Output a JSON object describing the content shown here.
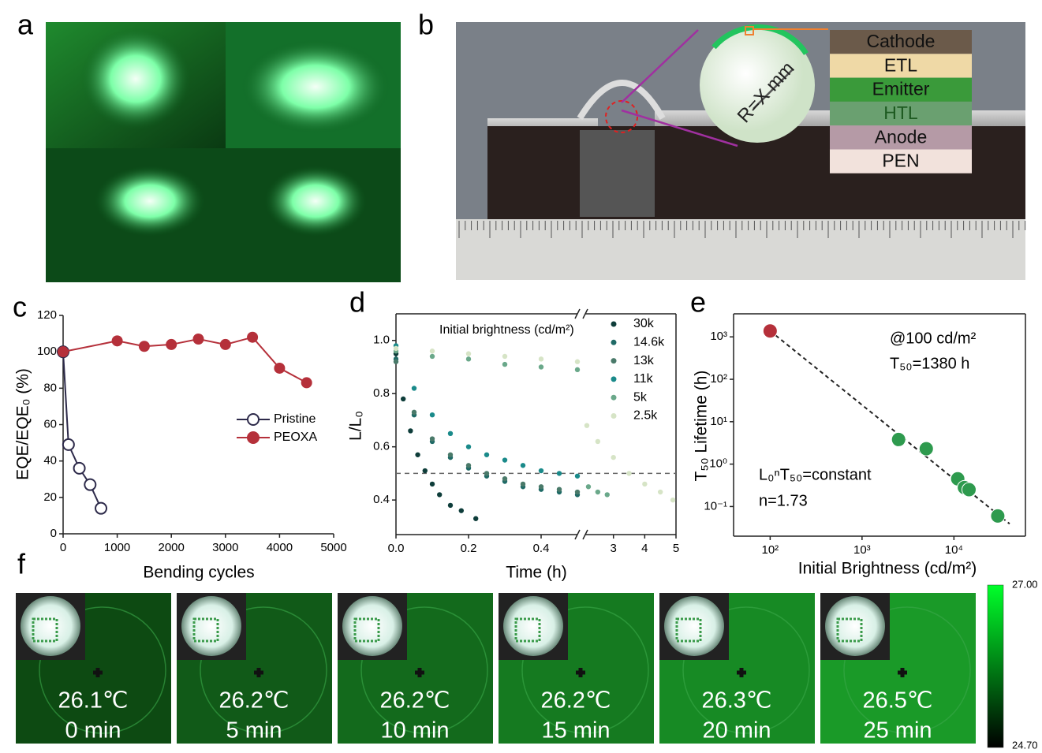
{
  "panel_labels": [
    "a",
    "b",
    "c",
    "d",
    "e",
    "f"
  ],
  "panel_b": {
    "layers": [
      "Cathode",
      "ETL",
      "Emitter",
      "HTL",
      "Anode",
      "PEN"
    ],
    "radius_label": "R=X mm"
  },
  "chart_data": [
    {
      "type": "line",
      "xlabel": "Bending cycles",
      "ylabel": "EQE/EQE₀ (%)",
      "xlim": [
        0,
        5000
      ],
      "xticks": [
        0,
        1000,
        2000,
        3000,
        4000,
        5000
      ],
      "ylim": [
        0,
        120
      ],
      "yticks": [
        0,
        20,
        40,
        60,
        80,
        100,
        120
      ],
      "legend_position": "center right",
      "series": [
        {
          "name": "Pristine",
          "color": "#2d2a4a",
          "marker": "open",
          "x": [
            0,
            100,
            300,
            500,
            700
          ],
          "values": [
            100,
            49,
            36,
            27,
            14
          ]
        },
        {
          "name": "PEOXA",
          "color": "#b5303a",
          "marker": "filled",
          "x": [
            0,
            1000,
            1500,
            2000,
            2500,
            3000,
            3500,
            4000,
            4500
          ],
          "values": [
            100,
            106,
            103,
            104,
            107,
            104,
            108,
            91,
            83
          ]
        }
      ]
    },
    {
      "type": "scatter",
      "xlabel": "Time (h)",
      "ylabel": "L/L₀",
      "xlim": [
        0,
        0.5
      ],
      "xticks": [
        {
          "value": 0,
          "label": "0.0"
        },
        0.2,
        0.4
      ],
      "x2lim": [
        2.1,
        5
      ],
      "x2ticks": [
        3,
        4,
        5
      ],
      "ylim": [
        0.27,
        1.1
      ],
      "yticks": [
        0.4,
        0.6,
        0.8,
        {
          "value": 1,
          "label": "1.0"
        }
      ],
      "reference_line": 0.5,
      "legend_title": "Initial brightness (cd/m²)",
      "legend_position": "upper right",
      "series": [
        {
          "name": "30k",
          "color": "#0e3d3a",
          "x": [
            0,
            0.02,
            0.04,
            0.06,
            0.08,
            0.1,
            0.12,
            0.15,
            0.18,
            0.22
          ],
          "values": [
            0.95,
            0.78,
            0.66,
            0.57,
            0.51,
            0.46,
            0.42,
            0.38,
            0.36,
            0.33
          ]
        },
        {
          "name": "14.6k",
          "color": "#1f6a66",
          "x": [
            0,
            0.05,
            0.1,
            0.15,
            0.2,
            0.25,
            0.3,
            0.35,
            0.4,
            0.45,
            0.5
          ],
          "values": [
            0.93,
            0.72,
            0.62,
            0.56,
            0.52,
            0.49,
            0.47,
            0.45,
            0.44,
            0.43,
            0.42
          ]
        },
        {
          "name": "13k",
          "color": "#4a7a6a",
          "x": [
            0,
            0.05,
            0.1,
            0.15,
            0.2,
            0.25,
            0.3,
            0.35,
            0.4,
            0.45,
            0.5
          ],
          "values": [
            0.92,
            0.73,
            0.63,
            0.57,
            0.53,
            0.5,
            0.48,
            0.46,
            0.45,
            0.44,
            0.43
          ]
        },
        {
          "name": "11k",
          "color": "#1a8a8a",
          "x": [
            0,
            0.05,
            0.1,
            0.15,
            0.2,
            0.25,
            0.3,
            0.35,
            0.4,
            0.45,
            0.5
          ],
          "values": [
            0.98,
            0.82,
            0.72,
            0.65,
            0.6,
            0.57,
            0.55,
            0.53,
            0.51,
            0.5,
            0.49
          ]
        },
        {
          "name": "5k",
          "color": "#6aa88a",
          "x": [
            0,
            0.1,
            0.2,
            0.3,
            0.4,
            0.5,
            2.2,
            2.5,
            2.8
          ],
          "values": [
            0.96,
            0.94,
            0.93,
            0.91,
            0.9,
            0.89,
            0.45,
            0.43,
            0.42
          ]
        },
        {
          "name": "2.5k",
          "color": "#d6e4c6",
          "x": [
            0,
            0.1,
            0.2,
            0.3,
            0.4,
            0.5,
            2.15,
            2.5,
            3,
            3.5,
            4,
            4.5,
            4.9
          ],
          "values": [
            0.97,
            0.96,
            0.95,
            0.94,
            0.93,
            0.92,
            0.68,
            0.62,
            0.56,
            0.5,
            0.46,
            0.43,
            0.4
          ]
        }
      ]
    },
    {
      "type": "scatter",
      "log_x": true,
      "log_y": true,
      "fit_line": true,
      "xlabel": "Initial Brightness (cd/m²)",
      "ylabel": "T₅₀ Lifetime (h)",
      "xlim": [
        40,
        60000
      ],
      "xticks": [
        {
          "value": 100,
          "label": "10²"
        },
        {
          "value": 1000,
          "label": "10³"
        },
        {
          "value": 10000,
          "label": "10⁴"
        }
      ],
      "ylim": [
        0.02,
        3500
      ],
      "yticks": [
        {
          "value": 0.1,
          "label": "10⁻¹"
        },
        {
          "value": 1,
          "label": "10⁰"
        },
        {
          "value": 10,
          "label": "10¹"
        },
        {
          "value": 100,
          "label": "10²"
        },
        {
          "value": 1000,
          "label": "10³"
        }
      ],
      "annotations": [
        "@100 cd/m²",
        "T₅₀=1380 h",
        "L₀ⁿT₅₀=constant",
        "n=1.73"
      ],
      "series": [
        {
          "color": "#b5303a",
          "x": [
            100
          ],
          "values": [
            1380
          ]
        },
        {
          "color": "#2e9a4e",
          "x": [
            2500,
            5000,
            11000,
            13000,
            14600,
            30000
          ],
          "values": [
            3.8,
            2.3,
            0.45,
            0.28,
            0.25,
            0.06
          ]
        }
      ]
    }
  ],
  "panel_f": {
    "tiles": [
      {
        "temperature": "26.1℃",
        "time": "0 min"
      },
      {
        "temperature": "26.2℃",
        "time": "5 min"
      },
      {
        "temperature": "26.2℃",
        "time": "10 min"
      },
      {
        "temperature": "26.2℃",
        "time": "15 min"
      },
      {
        "temperature": "26.3℃",
        "time": "20 min"
      },
      {
        "temperature": "26.5℃",
        "time": "25 min"
      }
    ],
    "colorbar": {
      "max": "27.00",
      "min": "24.70"
    }
  }
}
